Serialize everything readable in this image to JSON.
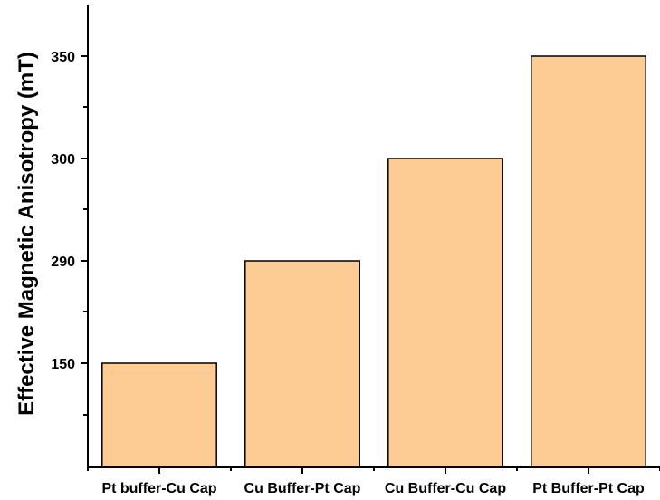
{
  "chart_data": {
    "type": "bar",
    "title": "",
    "xlabel": "",
    "ylabel": "Effective Magnetic Anisotropy (mT)",
    "categories": [
      "Pt buffer-Cu Cap",
      "Cu Buffer-Pt Cap",
      "Cu Buffer-Cu Cap",
      "Pt Buffer-Pt Cap"
    ],
    "values": [
      150,
      290,
      300,
      350
    ],
    "y_tick_labels": [
      "150",
      "290",
      "300",
      "350"
    ],
    "y_scale": "non-uniform: tick labels 150, 290, 300, 350 equally spaced",
    "bar_color": "#FDCB94",
    "bar_edge_color": "#000000",
    "grid": false,
    "legend": "none"
  }
}
